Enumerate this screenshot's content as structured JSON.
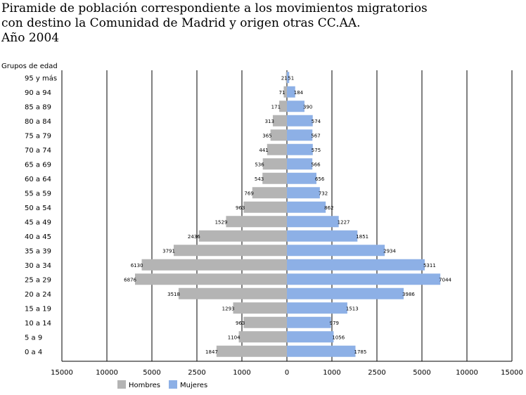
{
  "title_lines": [
    "Piramide de población correspondiente a los movimientos migratorios",
    "con destino la Comunidad de Madrid y origen otras CC.AA.",
    "Año 2004"
  ],
  "colors": {
    "hombres": "#b4b4b4",
    "mujeres": "#8db0e6",
    "grid": "#000000"
  },
  "chart_data": {
    "type": "bar",
    "orientation": "horizontal",
    "layout": "population-pyramid",
    "title": "Piramide de población correspondiente a los movimientos migratorios con destino la Comunidad de Madrid y origen otras CC.AA. Año 2004",
    "ylabel": "Grupos de edad",
    "categories": [
      "95 y más",
      "90 a 94",
      "85 a 89",
      "80 a 84",
      "75 a 79",
      "70 a 74",
      "65 a 69",
      "60 a 64",
      "55 a 59",
      "50 a 54",
      "45 a 49",
      "40 a 45",
      "35 a 39",
      "30 a 34",
      "25 a 29",
      "20 a 24",
      "15 a 19",
      "10 a 14",
      "5 a 9",
      "0 a 4"
    ],
    "x_ticks": [
      "15000",
      "10000",
      "5000",
      "2500",
      "1000",
      "0",
      "1000",
      "2500",
      "5000",
      "10000",
      "15000"
    ],
    "x_scale": "piecewise (0, 1000, 2500, 5000, 10000, 15000 equally spaced on each side)",
    "grid": true,
    "legend": "bottom-left",
    "series": [
      {
        "name": "Hombres",
        "side": "left",
        "values": [
          21,
          71,
          171,
          313,
          365,
          441,
          536,
          543,
          769,
          963,
          1529,
          2436,
          3791,
          6130,
          6876,
          3518,
          1293,
          963,
          1104,
          1847
        ]
      },
      {
        "name": "Mujeres",
        "side": "right",
        "values": [
          51,
          184,
          390,
          574,
          567,
          575,
          566,
          656,
          732,
          862,
          1227,
          1851,
          2934,
          5311,
          7044,
          3986,
          1513,
          979,
          1056,
          1785
        ]
      }
    ]
  }
}
